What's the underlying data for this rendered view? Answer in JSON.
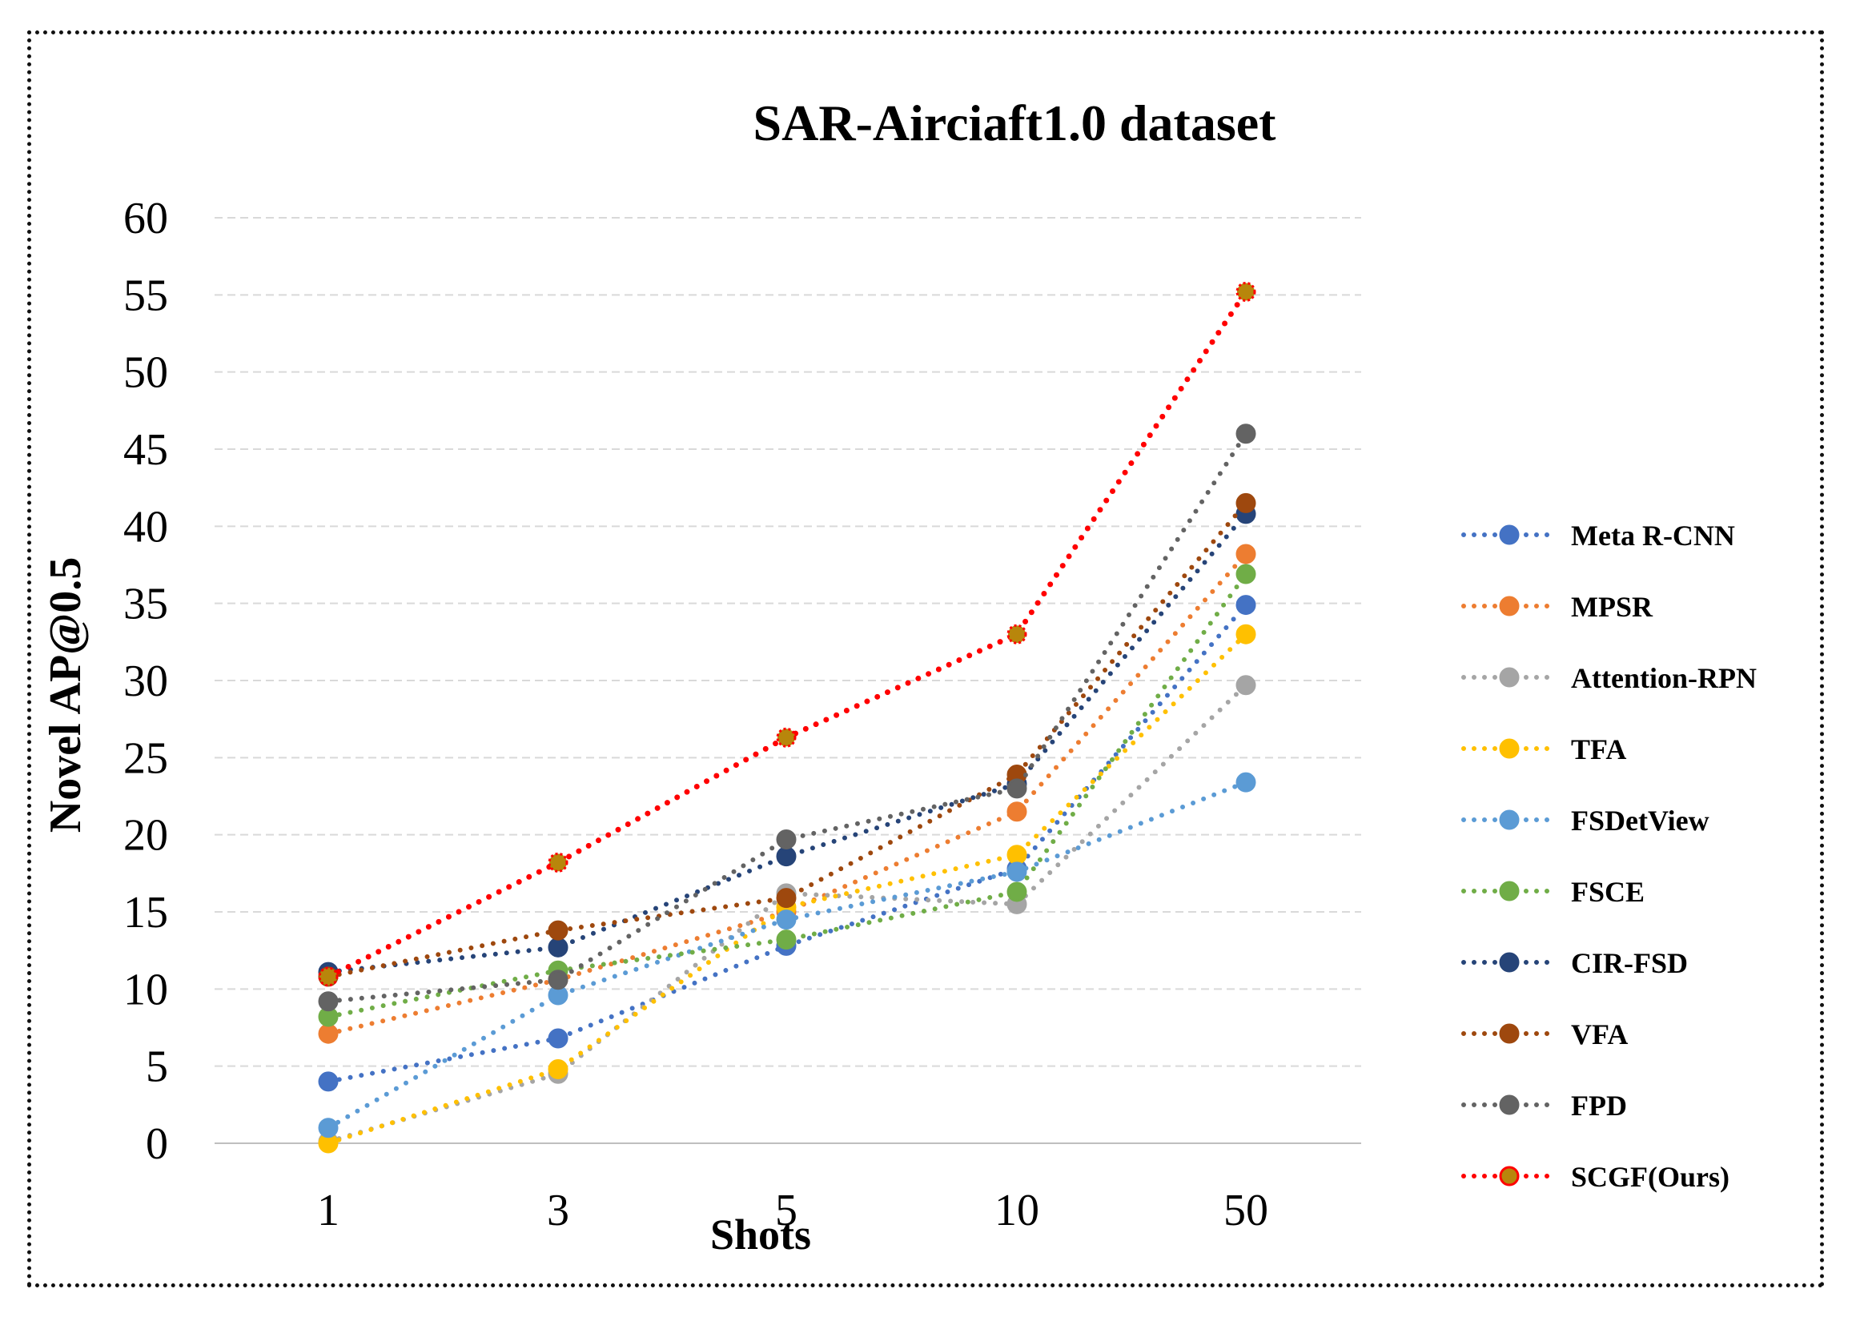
{
  "chart_data": {
    "type": "line",
    "title": "SAR-Airciaft1.0 dataset",
    "xlabel": "Shots",
    "ylabel": "Novel AP@0.5",
    "categories": [
      "1",
      "3",
      "5",
      "10",
      "50"
    ],
    "ylim": [
      0,
      60
    ],
    "yticks": [
      0,
      5,
      10,
      15,
      20,
      25,
      30,
      35,
      40,
      45,
      50,
      55,
      60
    ],
    "grid": "horizontal-dashed",
    "legend_position": "right",
    "line_style": "dotted",
    "series": [
      {
        "name": "Meta R-CNN",
        "color": "#4472C4",
        "values": [
          4.0,
          6.8,
          12.8,
          17.8,
          34.9
        ]
      },
      {
        "name": "MPSR",
        "color": "#ED7D31",
        "values": [
          7.1,
          10.6,
          15.0,
          21.5,
          38.2
        ]
      },
      {
        "name": "Attention-RPN",
        "color": "#A5A5A5",
        "values": [
          0.1,
          4.5,
          16.2,
          15.5,
          29.7
        ]
      },
      {
        "name": "TFA",
        "color": "#FFC000",
        "values": [
          0.0,
          4.8,
          15.3,
          18.7,
          33.0
        ]
      },
      {
        "name": "FSDetView",
        "color": "#5B9BD5",
        "values": [
          1.0,
          9.6,
          14.5,
          17.6,
          23.4
        ]
      },
      {
        "name": "FSCE",
        "color": "#70AD47",
        "values": [
          8.2,
          11.2,
          13.2,
          16.3,
          36.9
        ]
      },
      {
        "name": "CIR-FSD",
        "color": "#264478",
        "values": [
          11.1,
          12.7,
          18.6,
          23.3,
          40.8
        ]
      },
      {
        "name": "VFA",
        "color": "#9E480E",
        "values": [
          10.8,
          13.8,
          15.9,
          23.9,
          41.5
        ]
      },
      {
        "name": "FPD",
        "color": "#636363",
        "values": [
          9.2,
          10.6,
          19.7,
          23.0,
          46.0
        ]
      },
      {
        "name": "SCGF(Ours)",
        "color": "#FF0000",
        "marker_color": "#B8860B",
        "values": [
          10.8,
          18.2,
          26.3,
          33.0,
          55.2
        ]
      }
    ]
  }
}
